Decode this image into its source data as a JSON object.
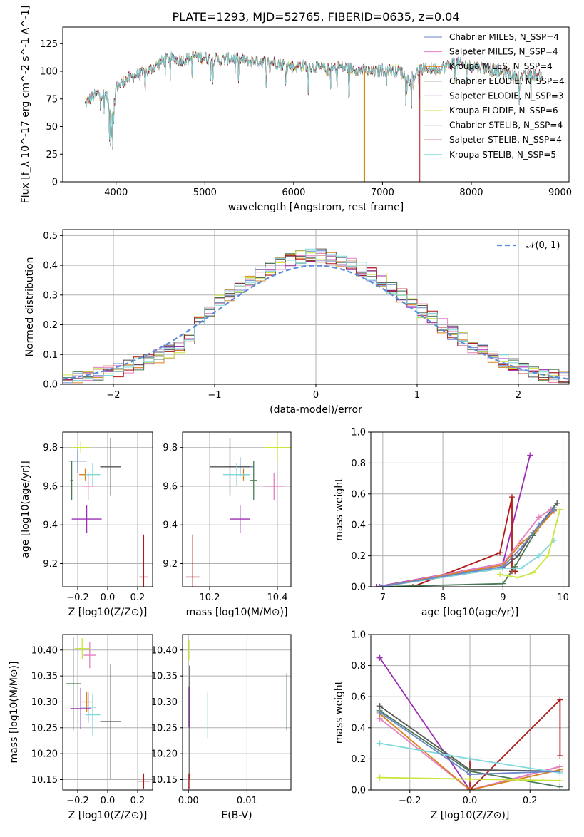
{
  "colors": {
    "chabrier_miles": "#6b86c9",
    "salpeter_miles": "#e57fbf",
    "kroupa_miles": "#d9821f",
    "chabrier_elodie": "#4a7a55",
    "salpeter_elodie": "#9a2fb5",
    "kroupa_elodie": "#c8e63c",
    "chabrier_stelib": "#555555",
    "salpeter_stelib": "#b01818",
    "kroupa_stelib": "#7fd8dc",
    "normal": "#5b8bd9"
  },
  "chart_data": [
    {
      "id": "spectrum",
      "type": "line",
      "title": "PLATE=1293, MJD=52765, FIBERID=0635, z=0.04",
      "xlabel": "wavelength [Angstrom, rest frame]",
      "ylabel": "Flux [f_λ 10^-17 erg cm^-2 s^-1 A^-1]",
      "xlim": [
        3400,
        9100
      ],
      "ylim": [
        0,
        140
      ],
      "xticks": [
        "4000",
        "5000",
        "6000",
        "7000",
        "8000",
        "9000"
      ],
      "yticks": [
        "0",
        "25",
        "50",
        "75",
        "100",
        "125"
      ],
      "grid": false,
      "legend_position": "top-right",
      "series": [
        {
          "name": "Chabrier MILES, N_SSP=4",
          "key": "chabrier_miles"
        },
        {
          "name": "Salpeter MILES, N_SSP=4",
          "key": "salpeter_miles"
        },
        {
          "name": "Kroupa MILES, N_SSP=4",
          "key": "kroupa_miles"
        },
        {
          "name": "Chabrier ELODIE, N_SSP=4",
          "key": "chabrier_elodie"
        },
        {
          "name": "Salpeter ELODIE, N_SSP=3",
          "key": "salpeter_elodie"
        },
        {
          "name": "Kroupa ELODIE, N_SSP=6",
          "key": "kroupa_elodie"
        },
        {
          "name": "Chabrier STELIB, N_SSP=4",
          "key": "chabrier_stelib"
        },
        {
          "name": "Salpeter STELIB, N_SSP=4",
          "key": "salpeter_stelib"
        },
        {
          "name": "Kroupa STELIB, N_SSP=5",
          "key": "kroupa_stelib"
        }
      ],
      "continuum": {
        "x": [
          3650,
          3700,
          3800,
          3900,
          3950,
          4000,
          4100,
          4200,
          4300,
          4400,
          4500,
          4600,
          4700,
          4800,
          4900,
          5000,
          5100,
          5200,
          5300,
          5400,
          5500,
          5600,
          5700,
          5800,
          5900,
          6000,
          6100,
          6200,
          6300,
          6400,
          6500,
          6600,
          6700,
          6800,
          6900,
          7000,
          7100,
          7200,
          7300,
          7400,
          7500,
          7600,
          7700,
          7800,
          7900,
          8000,
          8100,
          8200,
          8300,
          8400,
          8500,
          8600,
          8700,
          8800
        ],
        "y": [
          70,
          75,
          80,
          78,
          50,
          85,
          92,
          96,
          98,
          102,
          108,
          112,
          110,
          111,
          114,
          112,
          111,
          110,
          112,
          110,
          109,
          110,
          108,
          108,
          106,
          104,
          106,
          104,
          103,
          101,
          104,
          103,
          102,
          100,
          99,
          101,
          101,
          100,
          92,
          100,
          103,
          102,
          104,
          108,
          106,
          105,
          104,
          102,
          100,
          98,
          96,
          95,
          97,
          96
        ]
      },
      "dropouts": [
        {
          "key": "kroupa_elodie",
          "x": 3910
        },
        {
          "key": "kroupa_elodie",
          "x": 6790
        },
        {
          "key": "kroupa_miles",
          "x": 6800
        },
        {
          "key": "kroupa_miles",
          "x": 7410
        },
        {
          "key": "salpeter_stelib",
          "x": 7420
        }
      ]
    },
    {
      "id": "residuals",
      "type": "area",
      "xlabel": "(data-model)/error",
      "ylabel": "Normed distribution",
      "xlim": [
        -2.5,
        2.5
      ],
      "ylim": [
        0,
        0.52
      ],
      "xticks": [
        -2,
        -1,
        0,
        1,
        2
      ],
      "xtick_labels": [
        "−2",
        "−1",
        "0",
        "1",
        "2"
      ],
      "yticks": [
        "0.0",
        "0.1",
        "0.2",
        "0.3",
        "0.4",
        "0.5"
      ],
      "grid": true,
      "legend_position": "top-right",
      "reference_label": "𝒩(0, 1)",
      "bin_width": 0.1
    },
    {
      "id": "age_vs_z",
      "type": "scatter",
      "xlabel": "Z [log10(Z/Z⊙)]",
      "ylabel": "age  [log10(age/yr)]",
      "xlim": [
        -0.3,
        0.3
      ],
      "ylim": [
        9.08,
        9.88
      ],
      "xticks": [
        -0.2,
        0.0,
        0.2
      ],
      "xtick_labels": [
        "−0.2",
        "0.0",
        "0.2"
      ],
      "yticks": [
        9.2,
        9.4,
        9.6,
        9.8
      ],
      "ytick_labels": [
        "9.2",
        "9.4",
        "9.6",
        "9.8"
      ],
      "grid": true,
      "points": [
        {
          "key": "chabrier_miles",
          "x": -0.2,
          "y": 9.73,
          "xerr": 0.06,
          "yerr": 0.06
        },
        {
          "key": "salpeter_miles",
          "x": -0.13,
          "y": 9.6,
          "xerr": 0.04,
          "yerr": 0.07
        },
        {
          "key": "kroupa_miles",
          "x": -0.15,
          "y": 9.66,
          "xerr": 0.04,
          "yerr": 0.03
        },
        {
          "key": "chabrier_elodie",
          "x": -0.24,
          "y": 9.63,
          "xerr": 0.01,
          "yerr": 0.1
        },
        {
          "key": "salpeter_elodie",
          "x": -0.14,
          "y": 9.43,
          "xerr": 0.1,
          "yerr": 0.07
        },
        {
          "key": "kroupa_elodie",
          "x": -0.18,
          "y": 9.8,
          "xerr": 0.06,
          "yerr": 0.03
        },
        {
          "key": "chabrier_stelib",
          "x": 0.02,
          "y": 9.7,
          "xerr": 0.07,
          "yerr": 0.15
        },
        {
          "key": "salpeter_stelib",
          "x": 0.24,
          "y": 9.13,
          "xerr": 0.03,
          "yerr": 0.22
        },
        {
          "key": "kroupa_stelib",
          "x": -0.1,
          "y": 9.66,
          "xerr": 0.05,
          "yerr": 0.06
        }
      ]
    },
    {
      "id": "age_vs_mass",
      "type": "scatter",
      "xlabel": "mass [log10(M/M⊙)]",
      "xlim": [
        10.12,
        10.44
      ],
      "ylim": [
        9.08,
        9.88
      ],
      "xticks": [
        10.2,
        10.4
      ],
      "xtick_labels": [
        "10.2",
        "10.4"
      ],
      "yticks": [
        9.2,
        9.4,
        9.6,
        9.8
      ],
      "ytick_labels": [
        "9.2",
        "9.4",
        "9.6",
        "9.8"
      ],
      "grid": true,
      "points": [
        {
          "key": "chabrier_miles",
          "x": 10.29,
          "y": 9.7,
          "xerr": 0.04,
          "yerr": 0.05
        },
        {
          "key": "salpeter_miles",
          "x": 10.39,
          "y": 9.6,
          "xerr": 0.03,
          "yerr": 0.07
        },
        {
          "key": "kroupa_miles",
          "x": 10.3,
          "y": 9.66,
          "xerr": 0.02,
          "yerr": 0.03
        },
        {
          "key": "chabrier_elodie",
          "x": 10.33,
          "y": 9.63,
          "xerr": 0.01,
          "yerr": 0.1
        },
        {
          "key": "salpeter_elodie",
          "x": 10.29,
          "y": 9.43,
          "xerr": 0.03,
          "yerr": 0.07
        },
        {
          "key": "kroupa_elodie",
          "x": 10.4,
          "y": 9.8,
          "xerr": 0.04,
          "yerr": 0.07
        },
        {
          "key": "chabrier_stelib",
          "x": 10.26,
          "y": 9.7,
          "xerr": 0.06,
          "yerr": 0.15
        },
        {
          "key": "salpeter_stelib",
          "x": 10.15,
          "y": 9.13,
          "xerr": 0.02,
          "yerr": 0.22
        },
        {
          "key": "kroupa_stelib",
          "x": 10.28,
          "y": 9.66,
          "xerr": 0.04,
          "yerr": 0.06
        }
      ]
    },
    {
      "id": "weight_vs_age",
      "type": "line",
      "xlabel": "age  [log10(age/yr)]",
      "ylabel": "mass weight",
      "xlim": [
        6.8,
        10.1
      ],
      "ylim": [
        0,
        1
      ],
      "xticks": [
        7,
        8,
        9,
        10
      ],
      "xtick_labels": [
        "7",
        "8",
        "9",
        "10"
      ],
      "yticks": [
        0,
        0.2,
        0.4,
        0.6,
        0.8,
        1.0
      ],
      "ytick_labels": [
        "0.0",
        "0.2",
        "0.4",
        "0.6",
        "0.8",
        "1.0"
      ],
      "grid": true,
      "series": [
        {
          "key": "salpeter_elodie",
          "x": [
            6.9,
            9.0,
            9.45
          ],
          "y": [
            0.0,
            0.15,
            0.85
          ]
        },
        {
          "key": "salpeter_stelib",
          "x": [
            7.5,
            8.95,
            9.15,
            9.15,
            9.2
          ],
          "y": [
            0.0,
            0.22,
            0.58,
            0.1,
            0.1
          ]
        },
        {
          "key": "chabrier_stelib",
          "x": [
            6.95,
            9.0,
            9.25,
            9.5,
            9.9
          ],
          "y": [
            0.0,
            0.12,
            0.2,
            0.35,
            0.54
          ]
        },
        {
          "key": "chabrier_elodie",
          "x": [
            6.95,
            9.0,
            9.2,
            9.5,
            9.85
          ],
          "y": [
            0.0,
            0.02,
            0.13,
            0.33,
            0.51
          ]
        },
        {
          "key": "salpeter_miles",
          "x": [
            6.95,
            9.0,
            9.3,
            9.6,
            9.8
          ],
          "y": [
            0.0,
            0.15,
            0.3,
            0.45,
            0.5
          ]
        },
        {
          "key": "kroupa_miles",
          "x": [
            6.95,
            9.0,
            9.3,
            9.55,
            9.85
          ],
          "y": [
            0.0,
            0.14,
            0.28,
            0.36,
            0.49
          ]
        },
        {
          "key": "kroupa_stelib",
          "x": [
            6.95,
            9.0,
            9.3,
            9.6,
            9.85
          ],
          "y": [
            0.0,
            0.12,
            0.12,
            0.2,
            0.3
          ]
        },
        {
          "key": "chabrier_miles",
          "x": [
            6.95,
            9.0,
            9.3,
            9.6,
            9.85
          ],
          "y": [
            0.0,
            0.13,
            0.25,
            0.4,
            0.5
          ]
        },
        {
          "key": "kroupa_elodie",
          "x": [
            8.95,
            9.25,
            9.5,
            9.75,
            9.95
          ],
          "y": [
            0.08,
            0.06,
            0.09,
            0.2,
            0.5
          ]
        }
      ]
    },
    {
      "id": "mass_vs_z",
      "type": "scatter",
      "xlabel": "Z [log10(Z/Z⊙)]",
      "ylabel": "mass [log10(M/M⊙)]",
      "xlim": [
        -0.3,
        0.3
      ],
      "ylim": [
        10.13,
        10.43
      ],
      "xticks": [
        -0.2,
        0.0,
        0.2
      ],
      "xtick_labels": [
        "−0.2",
        "0.0",
        "0.2"
      ],
      "yticks": [
        10.15,
        10.2,
        10.25,
        10.3,
        10.35,
        10.4
      ],
      "ytick_labels": [
        "10.15",
        "10.20",
        "10.25",
        "10.30",
        "10.35",
        "10.40"
      ],
      "grid": true,
      "points": [
        {
          "key": "chabrier_miles",
          "x": -0.13,
          "y": 10.29,
          "xerr": 0.05,
          "yerr": 0.03
        },
        {
          "key": "salpeter_miles",
          "x": -0.12,
          "y": 10.39,
          "xerr": 0.04,
          "yerr": 0.025
        },
        {
          "key": "kroupa_miles",
          "x": -0.14,
          "y": 10.3,
          "xerr": 0.04,
          "yerr": 0.02
        },
        {
          "key": "chabrier_elodie",
          "x": -0.23,
          "y": 10.335,
          "xerr": 0.05,
          "yerr": 0.09
        },
        {
          "key": "salpeter_elodie",
          "x": -0.18,
          "y": 10.287,
          "xerr": 0.07,
          "yerr": 0.04
        },
        {
          "key": "kroupa_elodie",
          "x": -0.17,
          "y": 10.403,
          "xerr": 0.05,
          "yerr": 0.02
        },
        {
          "key": "chabrier_stelib",
          "x": 0.02,
          "y": 10.262,
          "xerr": 0.07,
          "yerr": 0.11
        },
        {
          "key": "salpeter_stelib",
          "x": 0.24,
          "y": 10.147,
          "xerr": 0.04,
          "yerr": 0.015
        },
        {
          "key": "kroupa_stelib",
          "x": -0.1,
          "y": 10.275,
          "xerr": 0.05,
          "yerr": 0.04
        }
      ]
    },
    {
      "id": "mass_vs_ebv",
      "type": "scatter",
      "xlabel": "E(B-V)",
      "xlim": [
        -0.001,
        0.0175
      ],
      "ylim": [
        10.13,
        10.43
      ],
      "xticks": [
        0.0,
        0.01
      ],
      "xtick_labels": [
        "0.00",
        "0.01"
      ],
      "yticks": [
        10.15,
        10.2,
        10.25,
        10.3,
        10.35,
        10.4
      ],
      "ytick_labels": [
        "10.15",
        "10.20",
        "10.25",
        "10.30",
        "10.35",
        "10.40"
      ],
      "grid": true,
      "points": [
        {
          "key": "kroupa_elodie",
          "x": 0.0001,
          "y": 10.4,
          "xerr": 0,
          "yerr": 0.02
        },
        {
          "key": "salpeter_elodie",
          "x": 0.0001,
          "y": 10.29,
          "xerr": 0,
          "yerr": 0.04
        },
        {
          "key": "chabrier_stelib",
          "x": 0.0002,
          "y": 10.26,
          "xerr": 0,
          "yerr": 0.11
        },
        {
          "key": "salpeter_stelib",
          "x": 0.0001,
          "y": 10.147,
          "xerr": 0,
          "yerr": 0.015
        },
        {
          "key": "kroupa_stelib",
          "x": 0.0033,
          "y": 10.275,
          "xerr": 0,
          "yerr": 0.045
        },
        {
          "key": "chabrier_elodie",
          "x": 0.0168,
          "y": 10.3,
          "xerr": 0,
          "yerr": 0.055
        }
      ]
    },
    {
      "id": "weight_vs_z",
      "type": "line",
      "xlabel": "Z [log10(Z/Z⊙)]",
      "ylabel": "mass weight",
      "xlim": [
        -0.33,
        0.33
      ],
      "ylim": [
        0,
        1
      ],
      "xticks": [
        -0.2,
        0.0,
        0.2
      ],
      "xtick_labels": [
        "−0.2",
        "0.0",
        "0.2"
      ],
      "yticks": [
        0,
        0.2,
        0.4,
        0.6,
        0.8,
        1.0
      ],
      "ytick_labels": [
        "0.0",
        "0.2",
        "0.4",
        "0.6",
        "0.8",
        "1.0"
      ],
      "grid": true,
      "series": [
        {
          "key": "salpeter_elodie",
          "x": [
            -0.3,
            0.0,
            0.3
          ],
          "y": [
            0.85,
            0.0,
            0.15
          ]
        },
        {
          "key": "salpeter_stelib",
          "x": [
            0.0,
            0.0,
            0.3,
            0.3
          ],
          "y": [
            0.2,
            0.0,
            0.58,
            0.22
          ]
        },
        {
          "key": "chabrier_stelib",
          "x": [
            -0.3,
            0.0,
            0.3
          ],
          "y": [
            0.54,
            0.13,
            0.12
          ]
        },
        {
          "key": "chabrier_elodie",
          "x": [
            -0.3,
            0.0,
            0.3
          ],
          "y": [
            0.51,
            0.12,
            0.02
          ]
        },
        {
          "key": "salpeter_miles",
          "x": [
            -0.3,
            0.0,
            0.3
          ],
          "y": [
            0.46,
            0.0,
            0.15
          ]
        },
        {
          "key": "kroupa_miles",
          "x": [
            -0.3,
            0.0,
            0.3
          ],
          "y": [
            0.49,
            0.0,
            0.13
          ]
        },
        {
          "key": "kroupa_stelib",
          "x": [
            -0.3,
            0.0,
            0.3
          ],
          "y": [
            0.3,
            0.2,
            0.11
          ]
        },
        {
          "key": "chabrier_miles",
          "x": [
            -0.3,
            0.0,
            0.3
          ],
          "y": [
            0.5,
            0.1,
            0.12
          ]
        },
        {
          "key": "kroupa_elodie",
          "x": [
            -0.3,
            0.0,
            0.3
          ],
          "y": [
            0.08,
            0.07,
            0.06
          ]
        }
      ]
    }
  ]
}
